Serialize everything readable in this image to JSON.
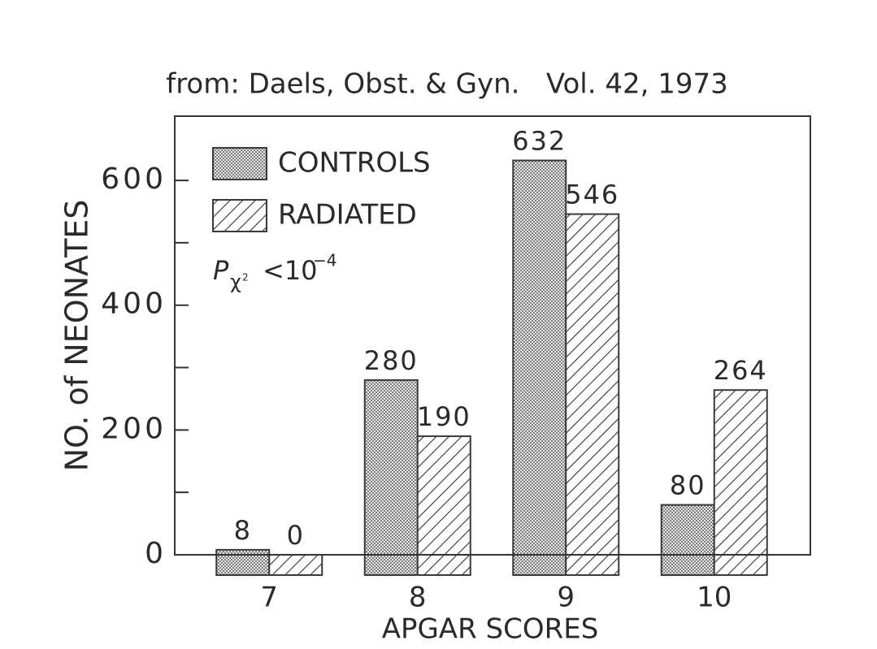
{
  "chart_data": {
    "type": "bar",
    "title": "from: Daels, Obst. & Gyn.   Vol. 42, 1973",
    "x_label": "APGAR SCORES",
    "y_label": "NO. of NEONATES",
    "annotation": {
      "symbol": "P",
      "subscript": "χ",
      "sub_power": "2",
      "relation": "<10",
      "power": "−4"
    },
    "categories": [
      "7",
      "8",
      "9",
      "10"
    ],
    "series": [
      {
        "name": "CONTROLS",
        "color": "#3a3a3a",
        "pattern": "dots",
        "values": [
          8,
          280,
          632,
          80
        ]
      },
      {
        "name": "RADIATED",
        "color": "#3a3a3a",
        "pattern": "hatch",
        "values": [
          0,
          190,
          546,
          264
        ]
      }
    ],
    "ylim": [
      0,
      703
    ],
    "yticks": [
      0,
      200,
      400,
      600
    ],
    "minor_yticks": [
      100,
      300,
      500
    ],
    "legend": "upper left"
  }
}
